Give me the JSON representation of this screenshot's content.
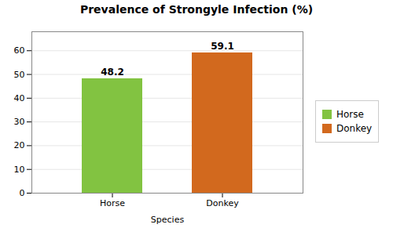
{
  "chart_data": {
    "type": "bar",
    "title": "Prevalence of Strongyle Infection (%)",
    "xlabel": "Species",
    "categories": [
      "Horse",
      "Donkey"
    ],
    "values": [
      48.2,
      59.1
    ],
    "colors": [
      "#82c341",
      "#d2691e"
    ],
    "ylim": [
      0,
      68
    ],
    "yticks": [
      0,
      10,
      20,
      30,
      40,
      50,
      60
    ],
    "grid": true,
    "legend": "right",
    "data_labels": true
  }
}
